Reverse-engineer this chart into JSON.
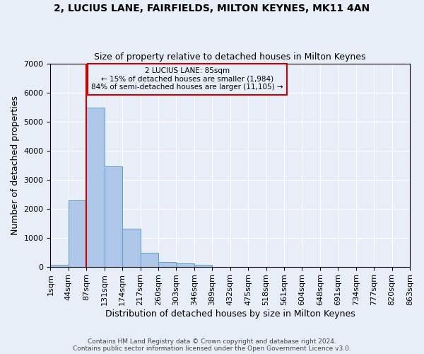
{
  "title1": "2, LUCIUS LANE, FAIRFIELDS, MILTON KEYNES, MK11 4AN",
  "title2": "Size of property relative to detached houses in Milton Keynes",
  "xlabel": "Distribution of detached houses by size in Milton Keynes",
  "ylabel": "Number of detached properties",
  "footnote1": "Contains HM Land Registry data © Crown copyright and database right 2024.",
  "footnote2": "Contains public sector information licensed under the Open Government Licence v3.0.",
  "annotation_line1": "2 LUCIUS LANE: 85sqm",
  "annotation_line2": "← 15% of detached houses are smaller (1,984)",
  "annotation_line3": "84% of semi-detached houses are larger (11,105) →",
  "bar_values": [
    75,
    2280,
    5470,
    3450,
    1310,
    480,
    165,
    100,
    70,
    0,
    0,
    0,
    0,
    0,
    0,
    0,
    0,
    0,
    0,
    0
  ],
  "bin_labels": [
    "1sqm",
    "44sqm",
    "87sqm",
    "131sqm",
    "174sqm",
    "217sqm",
    "260sqm",
    "303sqm",
    "346sqm",
    "389sqm",
    "432sqm",
    "475sqm",
    "518sqm",
    "561sqm",
    "604sqm",
    "648sqm",
    "691sqm",
    "734sqm",
    "777sqm",
    "820sqm",
    "863sqm"
  ],
  "bar_color": "#aec6e8",
  "bar_edge_color": "#5a9fd4",
  "vline_color": "#cc0000",
  "annotation_box_color": "#cc0000",
  "background_color": "#e8eef8",
  "ylim": [
    0,
    7000
  ],
  "yticks": [
    0,
    1000,
    2000,
    3000,
    4000,
    5000,
    6000,
    7000
  ],
  "figsize": [
    6.0,
    5.0
  ],
  "dpi": 100
}
